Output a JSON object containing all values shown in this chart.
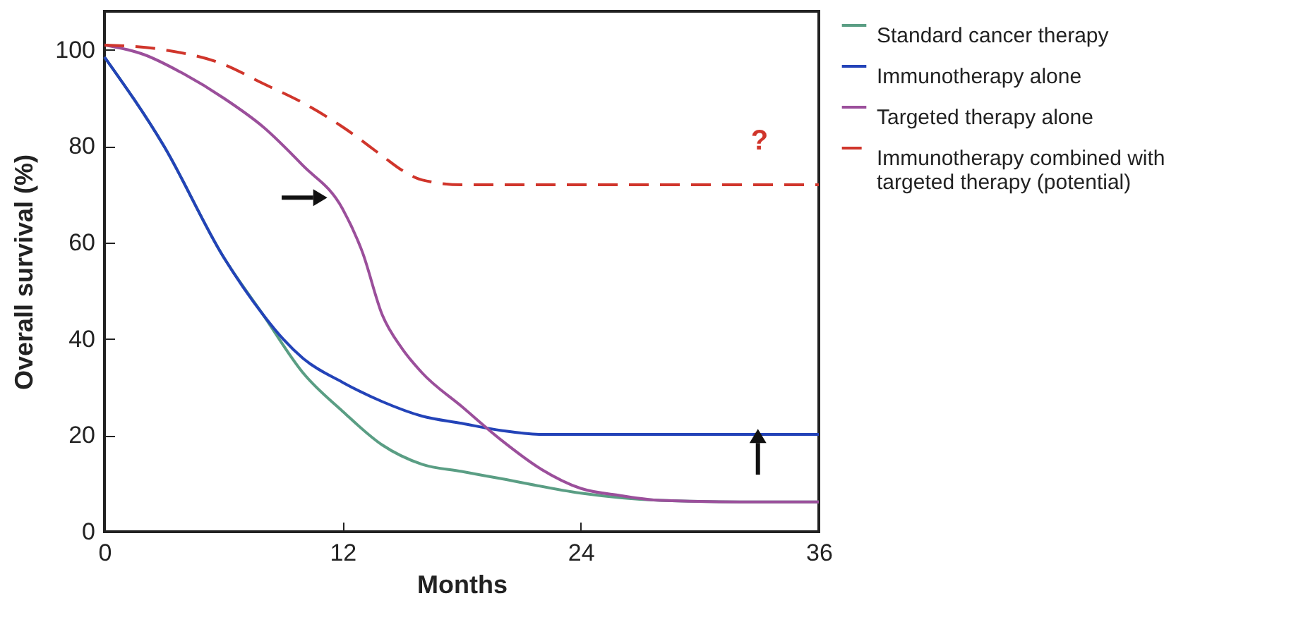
{
  "chart_data": {
    "type": "line",
    "xlabel": "Months",
    "ylabel": "Overall survival (%)",
    "xlim": [
      0,
      36
    ],
    "xticks": [
      0,
      12,
      24,
      36
    ],
    "ylim": [
      0,
      108
    ],
    "yticks": [
      0,
      20,
      40,
      60,
      80,
      100
    ],
    "grid": false,
    "legend": "right",
    "marker": "none",
    "annotations": [
      "?"
    ],
    "series": [
      {
        "name": "Standard cancer therapy",
        "color": "#5a9e84",
        "line_style": "solid",
        "x": [
          0,
          3,
          6,
          8,
          10,
          12,
          14,
          16,
          18,
          20,
          24,
          28,
          32,
          36
        ],
        "values": [
          98.5,
          80,
          57,
          45,
          33,
          25,
          18,
          14,
          12.5,
          11,
          8,
          6.5,
          6.2,
          6.2
        ]
      },
      {
        "name": "Immunotherapy alone",
        "color": "#2343b8",
        "line_style": "solid",
        "x": [
          0,
          3,
          6,
          8,
          9,
          10,
          12,
          14,
          16,
          18,
          20,
          22,
          24,
          36
        ],
        "values": [
          98.5,
          80,
          57,
          45,
          40,
          36,
          31,
          27,
          24,
          22.5,
          21,
          20.2,
          20.2,
          20.2
        ]
      },
      {
        "name": "Targeted therapy alone",
        "color": "#9b4f9b",
        "line_style": "solid",
        "x": [
          0,
          2,
          4,
          6,
          8,
          10,
          12,
          13,
          14,
          15,
          16,
          18,
          20,
          22,
          24,
          26,
          28,
          32,
          36
        ],
        "values": [
          101,
          99,
          95,
          90,
          84,
          76,
          67,
          58,
          45,
          38,
          33,
          26,
          19,
          13,
          9,
          7.5,
          6.5,
          6.2,
          6.2
        ]
      },
      {
        "name": "Immunotherapy combined with targeted therapy (potential)",
        "color": "#d0352b",
        "line_style": "dashed",
        "x": [
          0,
          3,
          6,
          8,
          10,
          12,
          14,
          15,
          16,
          18,
          36
        ],
        "values": [
          101,
          100,
          97,
          93,
          89,
          84,
          78,
          75,
          73,
          72,
          72
        ]
      }
    ]
  }
}
